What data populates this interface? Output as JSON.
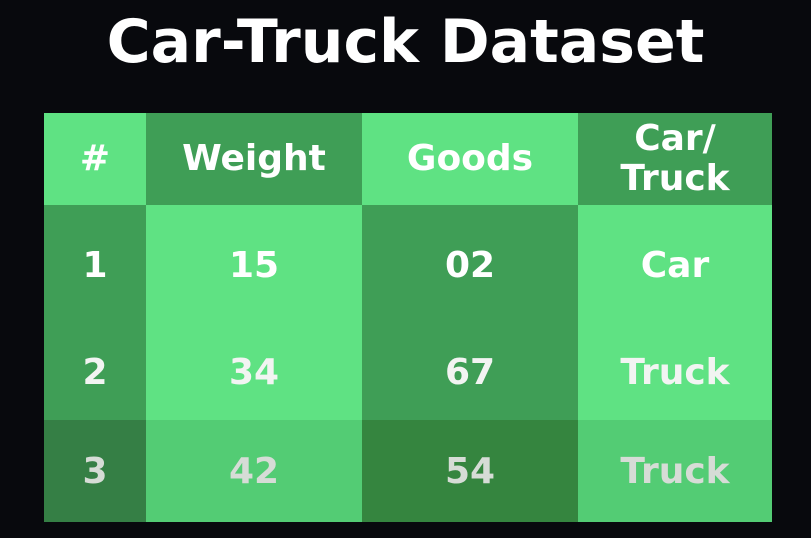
{
  "title": "Car-Truck Dataset",
  "table": {
    "headers": [
      "#",
      "Weight",
      "Goods",
      "Car/\nTruck"
    ],
    "header_lines": {
      "col4_line1": "Car/",
      "col4_line2": "Truck"
    },
    "rows": [
      {
        "id": "1",
        "weight": "15",
        "goods": "02",
        "type": "Car"
      },
      {
        "id": "2",
        "weight": "34",
        "goods": "67",
        "type": "Truck"
      },
      {
        "id": "3",
        "weight": "42",
        "goods": "54",
        "type": "Truck"
      }
    ]
  },
  "colors": {
    "background": "#08090d",
    "green_dark": "#3f9e56",
    "green_light": "#5fe283",
    "text": "#ffffff"
  }
}
